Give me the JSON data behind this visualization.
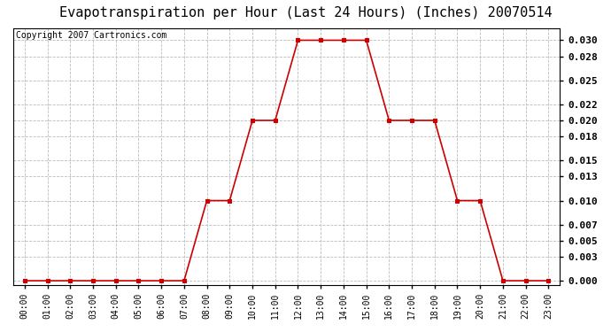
{
  "title": "Evapotranspiration per Hour (Last 24 Hours) (Inches) 20070514",
  "copyright": "Copyright 2007 Cartronics.com",
  "hours": [
    "00:00",
    "01:00",
    "02:00",
    "03:00",
    "04:00",
    "05:00",
    "06:00",
    "07:00",
    "08:00",
    "09:00",
    "10:00",
    "11:00",
    "12:00",
    "13:00",
    "14:00",
    "15:00",
    "16:00",
    "17:00",
    "18:00",
    "19:00",
    "20:00",
    "21:00",
    "22:00",
    "23:00"
  ],
  "values": [
    0.0,
    0.0,
    0.0,
    0.0,
    0.0,
    0.0,
    0.0,
    0.0,
    0.01,
    0.01,
    0.02,
    0.02,
    0.03,
    0.03,
    0.03,
    0.03,
    0.02,
    0.02,
    0.02,
    0.01,
    0.01,
    0.0,
    0.0,
    0.0
  ],
  "line_color": "#cc0000",
  "marker": "s",
  "marker_size": 3,
  "marker_color": "#cc0000",
  "bg_color": "#ffffff",
  "grid_color": "#bbbbbb",
  "ylim_min": -0.0005,
  "ylim_max": 0.0315,
  "yticks": [
    0.0,
    0.003,
    0.005,
    0.007,
    0.01,
    0.013,
    0.015,
    0.018,
    0.02,
    0.022,
    0.025,
    0.028,
    0.03
  ],
  "title_fontsize": 11,
  "copyright_fontsize": 7,
  "tick_fontsize": 8,
  "xtick_fontsize": 7
}
